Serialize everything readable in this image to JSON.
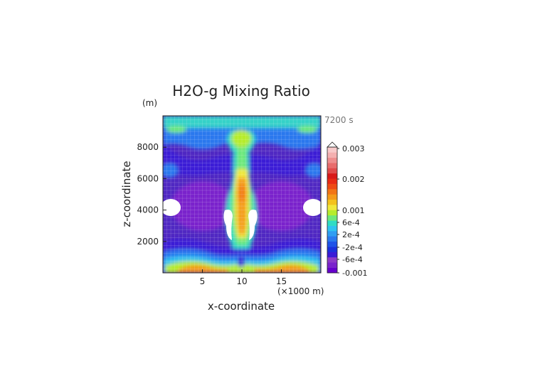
{
  "chart_data": {
    "type": "heatmap",
    "title": "H2O-g Mixing Ratio",
    "xlabel": "x-coordinate",
    "ylabel": "z-coordinate",
    "x_unit": "(×1000 m)",
    "y_unit": "(m)",
    "time_label": "7200 s",
    "xlim": [
      0,
      20
    ],
    "ylim": [
      0,
      10000
    ],
    "x_ticks": [
      5,
      10,
      15
    ],
    "y_ticks": [
      2000,
      4000,
      6000,
      8000
    ],
    "grid": true,
    "colorbar": {
      "placement": "right",
      "tick_labels": [
        "0.003",
        "0.002",
        "0.001",
        "6e-4",
        "2e-4",
        "-2e-4",
        "-6e-4",
        "-0.001"
      ],
      "colors": [
        "#6600cc",
        "#7a22cc",
        "#8e39c8",
        "#3a1ad6",
        "#1b30dc",
        "#1f52e8",
        "#2a78ee",
        "#2f9df2",
        "#2fc3f0",
        "#2fdcc4",
        "#6ee87a",
        "#b6ec2c",
        "#f0e83a",
        "#f4c21c",
        "#f49a1a",
        "#f27416",
        "#ee4a14",
        "#e82a14",
        "#d81818",
        "#e04a4a",
        "#e86c6c",
        "#ee8e8e",
        "#f4b0b0",
        "#f8caca"
      ]
    },
    "fields": {
      "background": "#5028c2",
      "upper_band": "#36d2c8"
    }
  }
}
